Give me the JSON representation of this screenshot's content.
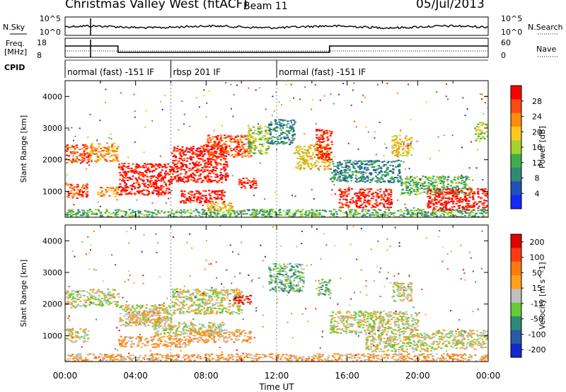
{
  "header": {
    "station": "Christmas Valley West (fitACF)",
    "beam": "Beam 11",
    "date": "05/Jul/2013"
  },
  "noise_panel": {
    "left_label": "N.Sky",
    "right_label": "N.Search",
    "ticks_left": [
      "10^5",
      "10^0"
    ],
    "ticks_right": [
      "10^5",
      "10^0"
    ]
  },
  "freq_panel": {
    "left_label_1": "Freq.",
    "left_label_2": "[MHz]",
    "right_label": "Nave",
    "ticks_left": [
      "18",
      "8"
    ],
    "ticks_right": [
      "60",
      "0"
    ]
  },
  "cpid_panel": {
    "label": "CPID",
    "segments": [
      {
        "text": "normal (fast) -151 IF",
        "start_hour": 0.0
      },
      {
        "text": "rbsp 201 IF",
        "start_hour": 6.0
      },
      {
        "text": "normal (fast) -151 IF",
        "start_hour": 12.0
      }
    ]
  },
  "time_axis": {
    "label": "Time UT",
    "ticks": [
      "00:00",
      "04:00",
      "08:00",
      "12:00",
      "16:00",
      "20:00",
      "00:00"
    ]
  },
  "chart_data": [
    {
      "type": "heatmap",
      "name": "power-panel",
      "ylabel": "Slant Range [km]",
      "yticks": [
        1000,
        2000,
        3000,
        4000
      ],
      "ylim": [
        180,
        4500
      ],
      "xlim_hours": [
        0,
        24
      ],
      "colorbar": {
        "label": "Power [dB]",
        "ticks": [
          "4",
          "8",
          "12",
          "16",
          "20",
          "24",
          "28"
        ],
        "colors": [
          "#1428ff",
          "#2050b8",
          "#2f8a74",
          "#3fae4a",
          "#a4d32a",
          "#ffc81e",
          "#ff8a10",
          "#ff4a10",
          "#ff0000"
        ]
      },
      "regions": [
        {
          "t0": 0.0,
          "t1": 1.3,
          "r0": 1900,
          "r1": 2500,
          "level": 7
        },
        {
          "t0": 0.0,
          "t1": 1.3,
          "r0": 800,
          "r1": 1250,
          "level": 7
        },
        {
          "t0": 1.3,
          "t1": 3.0,
          "r0": 1950,
          "r1": 2550,
          "level": 6
        },
        {
          "t0": 1.8,
          "t1": 3.0,
          "r0": 850,
          "r1": 1150,
          "level": 6
        },
        {
          "t0": 3.0,
          "t1": 6.0,
          "r0": 900,
          "r1": 1900,
          "level": 8
        },
        {
          "t0": 6.0,
          "t1": 9.2,
          "r0": 1300,
          "r1": 2500,
          "level": 8
        },
        {
          "t0": 8.0,
          "t1": 10.5,
          "r0": 2100,
          "r1": 2800,
          "level": 7
        },
        {
          "t0": 6.5,
          "t1": 9.0,
          "r0": 650,
          "r1": 1050,
          "level": 8
        },
        {
          "t0": 8.0,
          "t1": 9.5,
          "r0": 350,
          "r1": 650,
          "level": 5
        },
        {
          "t0": 9.8,
          "t1": 10.8,
          "r0": 1100,
          "r1": 1450,
          "level": 8
        },
        {
          "t0": 10.3,
          "t1": 11.5,
          "r0": 2200,
          "r1": 3100,
          "level": 4
        },
        {
          "t0": 11.5,
          "t1": 13.0,
          "r0": 2500,
          "r1": 3300,
          "level": 2
        },
        {
          "t0": 13.0,
          "t1": 15.0,
          "r0": 1700,
          "r1": 2500,
          "level": 5
        },
        {
          "t0": 14.2,
          "t1": 15.1,
          "r0": 2000,
          "r1": 3000,
          "level": 8
        },
        {
          "t0": 15.0,
          "t1": 19.0,
          "r0": 1300,
          "r1": 2000,
          "level": 2
        },
        {
          "t0": 15.5,
          "t1": 18.5,
          "r0": 500,
          "r1": 1100,
          "level": 8
        },
        {
          "t0": 18.5,
          "t1": 19.6,
          "r0": 2100,
          "r1": 2800,
          "level": 5
        },
        {
          "t0": 19.0,
          "t1": 23.0,
          "r0": 900,
          "r1": 1500,
          "level": 3
        },
        {
          "t0": 20.5,
          "t1": 24.0,
          "r0": 400,
          "r1": 1100,
          "level": 8
        },
        {
          "t0": 23.2,
          "t1": 24.0,
          "r0": 2600,
          "r1": 3200,
          "level": 4
        },
        {
          "t0": 0.0,
          "t1": 24.0,
          "r0": 180,
          "r1": 450,
          "level": 3
        }
      ]
    },
    {
      "type": "heatmap",
      "name": "velocity-panel",
      "ylabel": "Slant Range [km]",
      "yticks": [
        1000,
        2000,
        3000,
        4000
      ],
      "ylim": [
        180,
        4500
      ],
      "xlim_hours": [
        0,
        24
      ],
      "colorbar": {
        "label": "Velocity [m s^-1]",
        "ticks": [
          "200",
          "100",
          "50",
          "15",
          "-15",
          "-50",
          "-100",
          "-200"
        ],
        "colors": [
          "#1428d0",
          "#2a5aa8",
          "#2f8a74",
          "#66cc33",
          "#c0c0c0",
          "#ffa020",
          "#ff7a10",
          "#ff3a10",
          "#e00000"
        ]
      },
      "regions": [
        {
          "t0": 0.0,
          "t1": 1.3,
          "r0": 1900,
          "r1": 2450,
          "level": 4
        },
        {
          "t0": 0.0,
          "t1": 1.3,
          "r0": 800,
          "r1": 1250,
          "level": 4
        },
        {
          "t0": 1.3,
          "t1": 3.0,
          "r0": 1950,
          "r1": 2500,
          "level": 4
        },
        {
          "t0": 3.0,
          "t1": 6.0,
          "r0": 1300,
          "r1": 2000,
          "level": 4
        },
        {
          "t0": 6.0,
          "t1": 10.0,
          "r0": 1700,
          "r1": 2500,
          "level": 4
        },
        {
          "t0": 3.5,
          "t1": 5.5,
          "r0": 1400,
          "r1": 1800,
          "level": 5
        },
        {
          "t0": 9.5,
          "t1": 10.5,
          "r0": 2000,
          "r1": 2300,
          "level": 8
        },
        {
          "t0": 5.0,
          "t1": 9.0,
          "r0": 1000,
          "r1": 1450,
          "level": 4
        },
        {
          "t0": 3.0,
          "t1": 7.0,
          "r0": 650,
          "r1": 1000,
          "level": 5
        },
        {
          "t0": 7.0,
          "t1": 10.5,
          "r0": 800,
          "r1": 1200,
          "level": 5
        },
        {
          "t0": 11.5,
          "t1": 13.5,
          "r0": 2400,
          "r1": 3300,
          "level": 3
        },
        {
          "t0": 14.3,
          "t1": 15.0,
          "r0": 2300,
          "r1": 2800,
          "level": 3
        },
        {
          "t0": 15.0,
          "t1": 20.0,
          "r0": 1100,
          "r1": 1800,
          "level": 4
        },
        {
          "t0": 17.0,
          "t1": 21.0,
          "r0": 500,
          "r1": 1100,
          "level": 4
        },
        {
          "t0": 21.0,
          "t1": 24.0,
          "r0": 600,
          "r1": 1200,
          "level": 4
        },
        {
          "t0": 18.5,
          "t1": 19.6,
          "r0": 2100,
          "r1": 2700,
          "level": 4
        },
        {
          "t0": 0.0,
          "t1": 24.0,
          "r0": 180,
          "r1": 450,
          "level": 5
        }
      ]
    }
  ]
}
